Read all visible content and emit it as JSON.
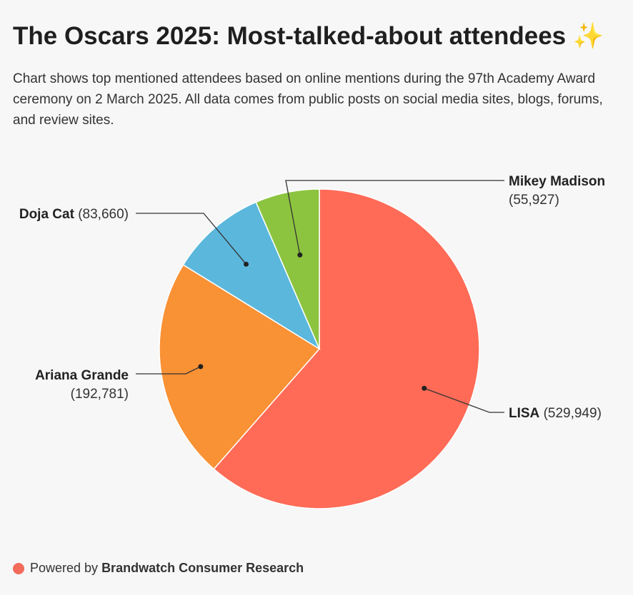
{
  "title": "The Oscars 2025: Most-talked-about attendees ✨",
  "subtitle": "Chart shows top mentioned attendees based on online mentions during the 97th Academy Award ceremony on 2 March 2025. All data comes from public posts on social media sites, blogs, forums, and review sites.",
  "footer": {
    "prefix": "Powered by",
    "brand": "Brandwatch Consumer Research",
    "dot_color": "#f26b5b"
  },
  "chart_data": {
    "type": "pie",
    "start": "12 o'clock",
    "direction": "clockwise",
    "slices": [
      {
        "label": "LISA",
        "value": 529949,
        "value_label": "(529,949)",
        "color": "#ff6b57"
      },
      {
        "label": "Ariana Grande",
        "value": 192781,
        "value_label": "(192,781)",
        "color": "#f99135"
      },
      {
        "label": "Doja Cat",
        "value": 83660,
        "value_label": "(83,660)",
        "color": "#5bb7dc"
      },
      {
        "label": "Mikey Madison",
        "value": 55927,
        "value_label": "(55,927)",
        "color": "#8cc43f"
      }
    ]
  }
}
